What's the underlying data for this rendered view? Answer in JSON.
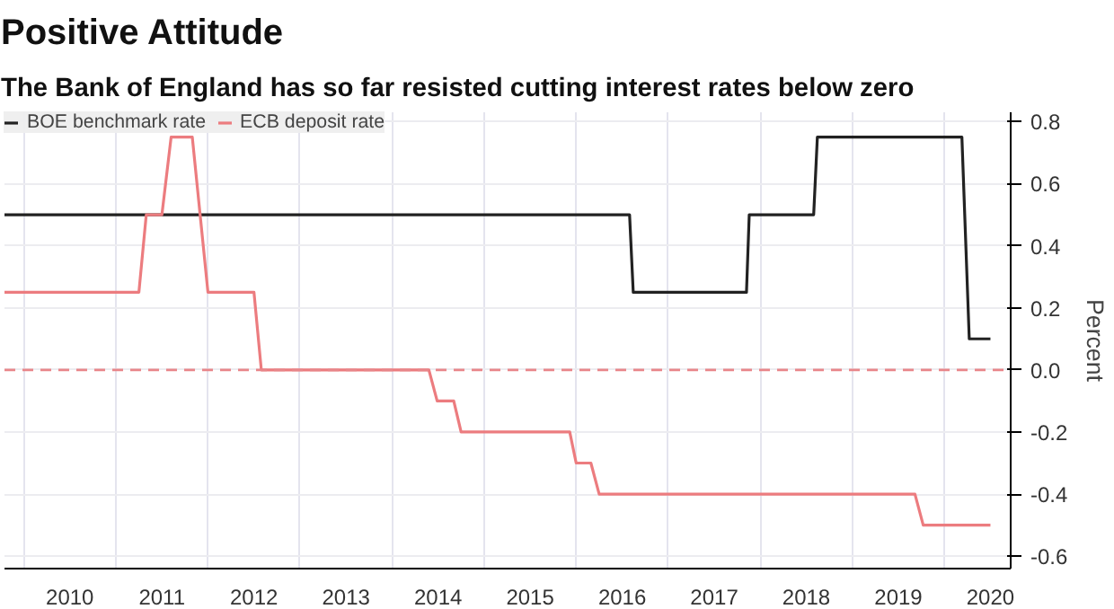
{
  "chart_data": {
    "type": "line",
    "title": "Positive Attitude",
    "subtitle": "The Bank of England has so far resisted cutting interest rates below zero",
    "ylabel": "Percent",
    "xlim": [
      2009.79,
      2020.72
    ],
    "ylim": [
      -0.64,
      0.83
    ],
    "xticks": [
      {
        "value": 2010,
        "label": null
      },
      {
        "value": 2010.5,
        "label": "2010"
      },
      {
        "value": 2011,
        "label": null
      },
      {
        "value": 2011.5,
        "label": "2011"
      },
      {
        "value": 2012,
        "label": null
      },
      {
        "value": 2012.5,
        "label": "2012"
      },
      {
        "value": 2013,
        "label": null
      },
      {
        "value": 2013.5,
        "label": "2013"
      },
      {
        "value": 2014,
        "label": null
      },
      {
        "value": 2014.5,
        "label": "2014"
      },
      {
        "value": 2015,
        "label": null
      },
      {
        "value": 2015.5,
        "label": "2015"
      },
      {
        "value": 2016,
        "label": null
      },
      {
        "value": 2016.5,
        "label": "2016"
      },
      {
        "value": 2017,
        "label": null
      },
      {
        "value": 2017.5,
        "label": "2017"
      },
      {
        "value": 2018,
        "label": null
      },
      {
        "value": 2018.5,
        "label": "2018"
      },
      {
        "value": 2019,
        "label": null
      },
      {
        "value": 2019.5,
        "label": "2019"
      },
      {
        "value": 2020,
        "label": null
      },
      {
        "value": 2020.5,
        "label": "2020"
      }
    ],
    "yticks": [
      {
        "value": 0.8,
        "label": "0.8"
      },
      {
        "value": 0.6,
        "label": "0.6"
      },
      {
        "value": 0.4,
        "label": "0.4"
      },
      {
        "value": 0.2,
        "label": "0.2"
      },
      {
        "value": 0,
        "label": "0.0"
      },
      {
        "value": -0.2,
        "label": "-0.2"
      },
      {
        "value": -0.4,
        "label": "-0.4"
      },
      {
        "value": -0.6,
        "label": "-0.6"
      }
    ],
    "grid": true,
    "legend": "top left",
    "line_style": "solid",
    "ref_lines": [
      {
        "axis": "y",
        "value": 0,
        "color": "#e8868a",
        "line_style": "dashed"
      }
    ],
    "series": [
      {
        "name": "BOE benchmark rate",
        "color": "#222222",
        "x": [
          2009.79,
          2016.58,
          2016.62,
          2017.85,
          2017.88,
          2018.58,
          2018.62,
          2020.19,
          2020.27,
          2020.5
        ],
        "values": [
          0.5,
          0.5,
          0.25,
          0.25,
          0.5,
          0.5,
          0.75,
          0.75,
          0.1,
          0.1
        ]
      },
      {
        "name": "ECB deposit rate",
        "color": "#ec7c7f",
        "x": [
          2009.79,
          2011.25,
          2011.33,
          2011.5,
          2011.6,
          2011.83,
          2012.0,
          2012.5,
          2012.58,
          2014.4,
          2014.49,
          2014.67,
          2014.75,
          2015.93,
          2016.0,
          2016.16,
          2016.25,
          2019.68,
          2019.77,
          2020.5
        ],
        "values": [
          0.25,
          0.25,
          0.5,
          0.5,
          0.75,
          0.75,
          0.25,
          0.25,
          0,
          0,
          -0.1,
          -0.1,
          -0.2,
          -0.2,
          -0.3,
          -0.3,
          -0.4,
          -0.4,
          -0.5,
          -0.5
        ]
      }
    ]
  }
}
